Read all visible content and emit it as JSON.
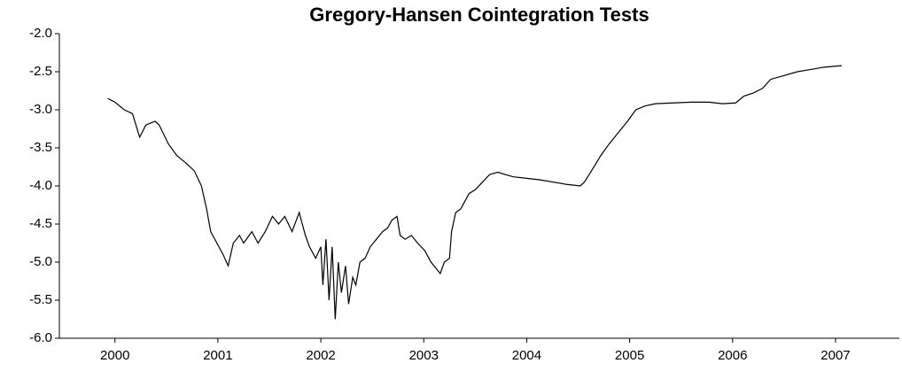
{
  "chart_data": {
    "type": "line",
    "title": "Gregory-Hansen Cointegration Tests",
    "x": [
      1999.93,
      2000.0,
      2000.09,
      2000.17,
      2000.24,
      2000.3,
      2000.39,
      2000.43,
      2000.52,
      2000.6,
      2000.69,
      2000.77,
      2000.84,
      2000.89,
      2000.93,
      2000.99,
      2001.05,
      2001.1,
      2001.15,
      2001.21,
      2001.25,
      2001.33,
      2001.39,
      2001.46,
      2001.53,
      2001.59,
      2001.65,
      2001.72,
      2001.79,
      2001.85,
      2001.89,
      2001.95,
      2002.0,
      2002.02,
      2002.05,
      2002.08,
      2002.11,
      2002.14,
      2002.17,
      2002.2,
      2002.24,
      2002.27,
      2002.31,
      2002.34,
      2002.38,
      2002.43,
      2002.48,
      2002.54,
      2002.6,
      2002.65,
      2002.69,
      2002.74,
      2002.77,
      2002.82,
      2002.88,
      2002.94,
      2003.01,
      2003.07,
      2003.13,
      2003.16,
      2003.2,
      2003.25,
      2003.27,
      2003.31,
      2003.36,
      2003.4,
      2003.44,
      2003.5,
      2003.57,
      2003.64,
      2003.72,
      2003.79,
      2003.87,
      2004.0,
      2004.13,
      2004.26,
      2004.39,
      2004.52,
      2004.56,
      2004.63,
      2004.72,
      2004.8,
      2004.89,
      2004.98,
      2005.06,
      2005.15,
      2005.25,
      2005.42,
      2005.6,
      2005.77,
      2005.9,
      2006.03,
      2006.11,
      2006.2,
      2006.29,
      2006.37,
      2006.5,
      2006.63,
      2006.76,
      2006.89,
      2007.06
    ],
    "series": [
      {
        "name": "Gregory-Hansen",
        "color": "#000000",
        "values": [
          -2.85,
          -2.9,
          -3.0,
          -3.05,
          -3.36,
          -3.2,
          -3.15,
          -3.2,
          -3.45,
          -3.6,
          -3.7,
          -3.8,
          -4.0,
          -4.3,
          -4.6,
          -4.75,
          -4.9,
          -5.05,
          -4.75,
          -4.65,
          -4.75,
          -4.6,
          -4.75,
          -4.6,
          -4.4,
          -4.5,
          -4.4,
          -4.6,
          -4.35,
          -4.65,
          -4.8,
          -4.95,
          -4.8,
          -5.3,
          -4.7,
          -5.5,
          -4.8,
          -5.75,
          -5.0,
          -5.4,
          -5.05,
          -5.55,
          -5.2,
          -5.3,
          -5.0,
          -4.95,
          -4.8,
          -4.7,
          -4.6,
          -4.55,
          -4.45,
          -4.4,
          -4.65,
          -4.7,
          -4.65,
          -4.75,
          -4.85,
          -5.0,
          -5.1,
          -5.15,
          -5.0,
          -4.95,
          -4.6,
          -4.35,
          -4.3,
          -4.2,
          -4.1,
          -4.05,
          -3.95,
          -3.85,
          -3.82,
          -3.85,
          -3.88,
          -3.9,
          -3.92,
          -3.95,
          -3.98,
          -4.0,
          -3.95,
          -3.8,
          -3.6,
          -3.45,
          -3.3,
          -3.15,
          -3.0,
          -2.95,
          -2.92,
          -2.91,
          -2.9,
          -2.9,
          -2.92,
          -2.91,
          -2.82,
          -2.78,
          -2.72,
          -2.6,
          -2.55,
          -2.5,
          -2.47,
          -2.44,
          -2.42
        ]
      }
    ],
    "xlim": [
      1999.46,
      2007.62
    ],
    "xticks": [
      2000,
      2001,
      2002,
      2003,
      2004,
      2005,
      2006,
      2007
    ],
    "ylim": [
      -6,
      -2
    ],
    "yticks": [
      {
        "value": -2,
        "label": "-2.0"
      },
      {
        "value": -2.5,
        "label": "-2.5"
      },
      {
        "value": -3,
        "label": "-3.0"
      },
      {
        "value": -3.5,
        "label": "-3.5"
      },
      {
        "value": -4,
        "label": "-4.0"
      },
      {
        "value": -4.5,
        "label": "-4.5"
      },
      {
        "value": -5,
        "label": "-5.0"
      },
      {
        "value": -5.5,
        "label": "-5.5"
      },
      {
        "value": -6,
        "label": "-6.0"
      }
    ],
    "grid": false
  }
}
